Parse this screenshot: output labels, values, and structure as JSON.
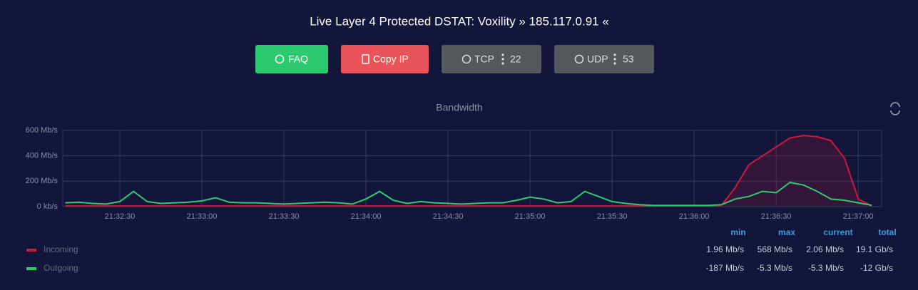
{
  "header": {
    "title": "Live Layer 4 Protected DSTAT: Voxility » 185.117.0.91 «"
  },
  "buttons": [
    {
      "label": "FAQ"
    },
    {
      "label": "Copy IP"
    },
    {
      "label": "TCP",
      "count": 22
    },
    {
      "label": "UDP",
      "count": 53
    }
  ],
  "chart_data": {
    "type": "line",
    "title": "Bandwidth",
    "x": [
      "21:32:10",
      "21:32:15",
      "21:32:20",
      "21:32:25",
      "21:32:30",
      "21:32:35",
      "21:32:40",
      "21:32:45",
      "21:32:50",
      "21:32:55",
      "21:33:00",
      "21:33:05",
      "21:33:10",
      "21:33:15",
      "21:33:20",
      "21:33:25",
      "21:33:30",
      "21:33:35",
      "21:33:40",
      "21:33:45",
      "21:33:50",
      "21:33:55",
      "21:34:00",
      "21:34:05",
      "21:34:10",
      "21:34:15",
      "21:34:20",
      "21:34:25",
      "21:34:30",
      "21:34:35",
      "21:34:40",
      "21:34:45",
      "21:34:50",
      "21:34:55",
      "21:35:00",
      "21:35:05",
      "21:35:10",
      "21:35:15",
      "21:35:20",
      "21:35:25",
      "21:35:30",
      "21:35:35",
      "21:35:40",
      "21:35:45",
      "21:35:50",
      "21:35:55",
      "21:36:00",
      "21:36:05",
      "21:36:10",
      "21:36:15",
      "21:36:20",
      "21:36:25",
      "21:36:30",
      "21:36:35",
      "21:36:40",
      "21:36:45",
      "21:36:50",
      "21:36:55",
      "21:37:00",
      "21:37:05"
    ],
    "series": [
      {
        "name": "Incoming",
        "color": "#d0173a",
        "values": [
          5,
          5,
          5,
          5,
          5,
          5,
          5,
          5,
          5,
          5,
          5,
          5,
          5,
          5,
          5,
          5,
          5,
          5,
          5,
          5,
          5,
          5,
          5,
          5,
          5,
          5,
          5,
          5,
          5,
          5,
          5,
          5,
          5,
          5,
          5,
          5,
          5,
          5,
          5,
          5,
          5,
          5,
          5,
          5,
          5,
          5,
          5,
          5,
          10,
          150,
          330,
          400,
          470,
          540,
          560,
          550,
          520,
          380,
          60,
          5
        ]
      },
      {
        "name": "Outgoing",
        "color": "#2ecc71",
        "values": [
          30,
          35,
          25,
          20,
          40,
          120,
          40,
          25,
          30,
          35,
          45,
          70,
          35,
          30,
          30,
          25,
          20,
          25,
          30,
          35,
          30,
          20,
          60,
          120,
          50,
          25,
          40,
          30,
          25,
          20,
          25,
          30,
          30,
          50,
          75,
          60,
          30,
          40,
          120,
          80,
          40,
          25,
          15,
          10,
          10,
          10,
          10,
          10,
          15,
          60,
          80,
          120,
          110,
          190,
          170,
          120,
          60,
          50,
          30,
          10
        ]
      }
    ],
    "ylim": [
      0,
      600
    ],
    "yticks": [
      {
        "value": 0,
        "label": "0 kb/s"
      },
      {
        "value": 200,
        "label": "200 Mb/s"
      },
      {
        "value": 400,
        "label": "400 Mb/s"
      },
      {
        "value": 600,
        "label": "600 Mb/s"
      }
    ],
    "xticks": [
      "21:32:30",
      "21:33:00",
      "21:33:30",
      "21:34:00",
      "21:34:30",
      "21:35:00",
      "21:35:30",
      "21:36:00",
      "21:36:30",
      "21:37:00"
    ],
    "grid": true
  },
  "stats": {
    "columns": [
      "min",
      "max",
      "current",
      "total"
    ],
    "rows": [
      [
        "1.96 Mb/s",
        "568 Mb/s",
        "2.06 Mb/s",
        "19.1 Gb/s"
      ],
      [
        "-187 Mb/s",
        "-5.3 Mb/s",
        "-5.3 Mb/s",
        "-12 Gb/s"
      ]
    ]
  }
}
